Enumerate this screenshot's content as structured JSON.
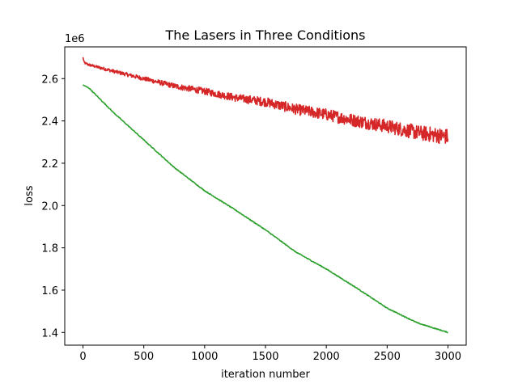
{
  "chart_data": {
    "type": "line",
    "title": "The Lasers in Three Conditions",
    "xlabel": "iteration number",
    "ylabel": "loss",
    "y_offset_label": "1e6",
    "xlim": [
      -150,
      3150
    ],
    "ylim": [
      1.34,
      2.75
    ],
    "x_ticks": [
      0,
      500,
      1000,
      1500,
      2000,
      2500,
      3000
    ],
    "x_tick_labels": [
      "0",
      "500",
      "1000",
      "1500",
      "2000",
      "2500",
      "3000"
    ],
    "y_ticks": [
      1.4,
      1.6,
      1.8,
      2.0,
      2.2,
      2.4,
      2.6
    ],
    "y_tick_labels": [
      "1.4",
      "1.6",
      "1.8",
      "2.0",
      "2.2",
      "2.4",
      "2.6"
    ],
    "grid": false,
    "series": [
      {
        "color": "#d62728",
        "noisy": true,
        "x": [
          0,
          10,
          50,
          250,
          500,
          750,
          1000,
          1250,
          1500,
          1750,
          2000,
          2250,
          2500,
          2750,
          3000
        ],
        "y": [
          2.7,
          2.675,
          2.665,
          2.635,
          2.6,
          2.565,
          2.54,
          2.51,
          2.49,
          2.455,
          2.43,
          2.4,
          2.375,
          2.345,
          2.325
        ],
        "noise_amp": [
          0.004,
          0.005,
          0.006,
          0.008,
          0.01,
          0.013,
          0.016,
          0.018,
          0.022,
          0.025,
          0.028,
          0.03,
          0.032,
          0.035,
          0.038
        ]
      },
      {
        "color": "#2ca02c",
        "noisy": false,
        "x": [
          0,
          50,
          250,
          500,
          750,
          1000,
          1250,
          1500,
          1750,
          2000,
          2250,
          2500,
          2750,
          3000
        ],
        "y": [
          2.57,
          2.555,
          2.44,
          2.31,
          2.18,
          2.07,
          1.98,
          1.885,
          1.78,
          1.7,
          1.61,
          1.515,
          1.445,
          1.4
        ]
      }
    ]
  }
}
